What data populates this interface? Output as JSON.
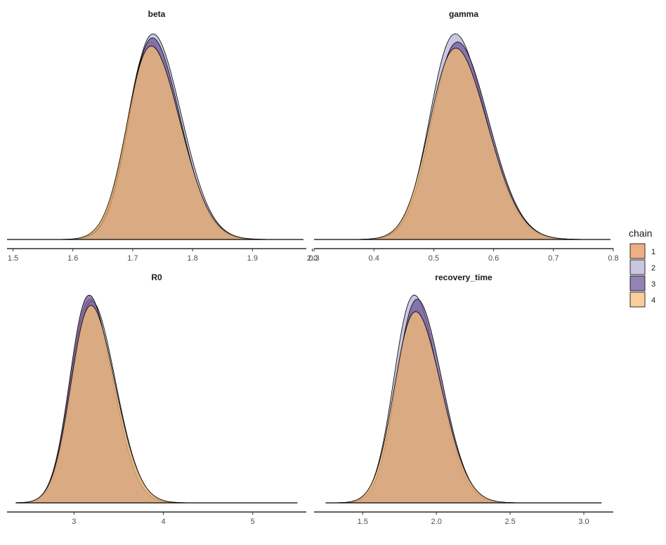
{
  "chart_data": {
    "type": "area",
    "legend": {
      "title": "chain",
      "position": "right",
      "entries": [
        {
          "label": "1",
          "color": "#E8945A",
          "alpha": 0.75
        },
        {
          "label": "2",
          "color": "#B7B3D5",
          "alpha": 0.75
        },
        {
          "label": "3",
          "color": "#6E5A9A",
          "alpha": 0.75
        },
        {
          "label": "4",
          "color": "#F7BD78",
          "alpha": 0.75
        }
      ]
    },
    "grid": false,
    "panels": [
      {
        "title": "beta",
        "xlim": [
          1.49,
          1.99
        ],
        "ticks": [
          1.5,
          1.6,
          1.7,
          1.8,
          1.9,
          2.0
        ],
        "tick_labels": [
          "1.5",
          "1.6",
          "1.7",
          "1.8",
          "1.9",
          "2.0"
        ],
        "range": [
          1.49,
          1.985
        ],
        "series": [
          {
            "mean": 1.73,
            "sd": 0.042,
            "peak": 0.96
          },
          {
            "mean": 1.734,
            "sd": 0.043,
            "peak": 1.0
          },
          {
            "mean": 1.733,
            "sd": 0.042,
            "peak": 0.98
          },
          {
            "mean": 1.731,
            "sd": 0.044,
            "peak": 0.94
          }
        ]
      },
      {
        "title": "gamma",
        "xlim": [
          0.3,
          0.8
        ],
        "ticks": [
          0.3,
          0.4,
          0.5,
          0.6,
          0.7,
          0.8
        ],
        "tick_labels": [
          "0.3",
          "0.4",
          "0.5",
          "0.6",
          "0.7",
          "0.8"
        ],
        "range": [
          0.3,
          0.795
        ],
        "series": [
          {
            "mean": 0.538,
            "sd": 0.047,
            "peak": 0.92
          },
          {
            "mean": 0.536,
            "sd": 0.046,
            "peak": 1.0
          },
          {
            "mean": 0.54,
            "sd": 0.047,
            "peak": 0.96
          },
          {
            "mean": 0.537,
            "sd": 0.048,
            "peak": 0.93
          }
        ]
      },
      {
        "title": "R0",
        "xlim": [
          2.25,
          5.6
        ],
        "ticks": [
          3,
          4,
          5
        ],
        "tick_labels": [
          "3",
          "4",
          "5"
        ],
        "range": [
          2.35,
          5.5
        ],
        "series": [
          {
            "mean": 3.18,
            "sd": 0.24,
            "peak": 0.98
          },
          {
            "mean": 3.2,
            "sd": 0.24,
            "peak": 0.97
          },
          {
            "mean": 3.17,
            "sd": 0.235,
            "peak": 1.0
          },
          {
            "mean": 3.19,
            "sd": 0.245,
            "peak": 0.95
          }
        ]
      },
      {
        "title": "recovery_time",
        "xlim": [
          1.17,
          3.2
        ],
        "ticks": [
          1.5,
          2.0,
          2.5,
          3.0
        ],
        "tick_labels": [
          "1.5",
          "2.0",
          "2.5",
          "3.0"
        ],
        "range": [
          1.25,
          3.12
        ],
        "series": [
          {
            "mean": 1.86,
            "sd": 0.155,
            "peak": 0.93
          },
          {
            "mean": 1.85,
            "sd": 0.15,
            "peak": 1.0
          },
          {
            "mean": 1.87,
            "sd": 0.152,
            "peak": 0.98
          },
          {
            "mean": 1.86,
            "sd": 0.158,
            "peak": 0.92
          }
        ]
      }
    ]
  }
}
